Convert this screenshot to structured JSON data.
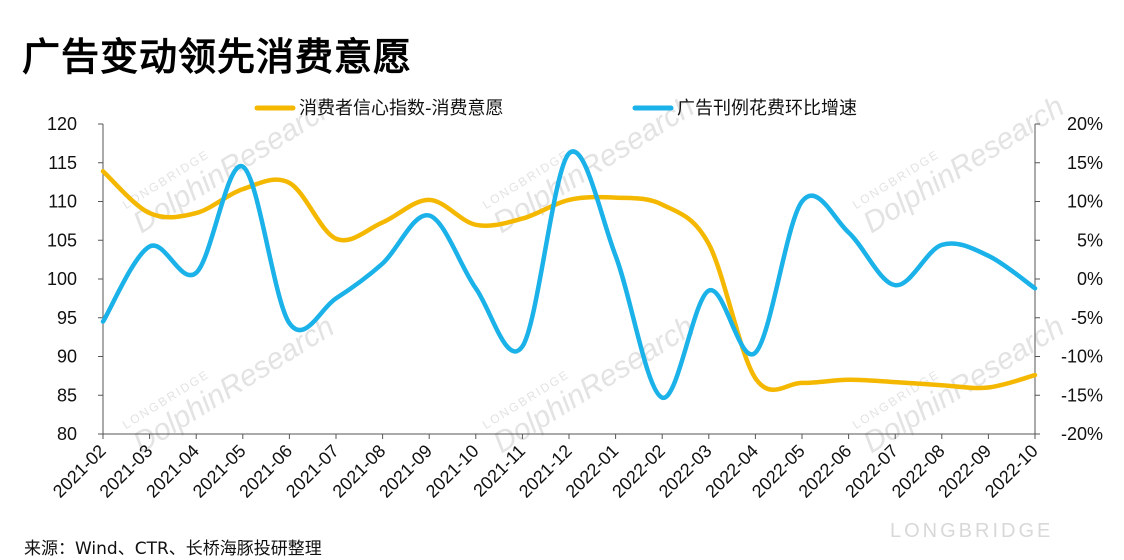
{
  "title": "广告变动领先消费意愿",
  "source": "来源：Wind、CTR、长桥海豚投研整理",
  "watermark": {
    "brand": "LONGBRIDGE",
    "text": "DolphinResearch"
  },
  "brand_mark": "LONGBRIDGE",
  "chart_data": {
    "type": "line",
    "x": [
      "2021-02",
      "2021-03",
      "2021-04",
      "2021-05",
      "2021-06",
      "2021-07",
      "2021-08",
      "2021-09",
      "2021-10",
      "2021-11",
      "2021-12",
      "2022-01",
      "2022-02",
      "2022-03",
      "2022-04",
      "2022-05",
      "2022-06",
      "2022-07",
      "2022-08",
      "2022-09",
      "2022-10"
    ],
    "y_left": {
      "min": 80,
      "max": 120,
      "ticks": [
        80,
        85,
        90,
        95,
        100,
        105,
        110,
        115,
        120
      ],
      "tick_labels": [
        "80",
        "85",
        "90",
        "95",
        "100",
        "105",
        "110",
        "115",
        "120"
      ]
    },
    "y_right": {
      "min": -20,
      "max": 20,
      "ticks": [
        -20,
        -15,
        -10,
        -5,
        0,
        5,
        10,
        15,
        20
      ],
      "tick_labels": [
        "-20%",
        "-15%",
        "-10%",
        "-5%",
        "0%",
        "5%",
        "10%",
        "15%",
        "20%"
      ]
    },
    "grid": false,
    "legend_position": "top",
    "series": [
      {
        "name": "消费者信心指数-消费意愿",
        "axis": "left",
        "color": "#F5B800",
        "values": [
          113.9,
          108.5,
          108.5,
          111.6,
          112.4,
          105.2,
          107.3,
          110.2,
          107.0,
          107.8,
          110.2,
          110.5,
          109.6,
          104.5,
          87.2,
          86.6,
          87.0,
          86.7,
          86.3,
          86.0,
          87.6
        ]
      },
      {
        "name": "广告刊例花费环比增速",
        "axis": "right",
        "color": "#1AB2E8",
        "values": [
          -5.5,
          4.2,
          0.8,
          14.5,
          -5.7,
          -2.5,
          2.0,
          8.2,
          -1.2,
          -8.7,
          16.2,
          3.0,
          -15.3,
          -1.5,
          -9.5,
          10.0,
          6.0,
          -0.8,
          4.4,
          3.0,
          -1.2
        ]
      }
    ]
  }
}
